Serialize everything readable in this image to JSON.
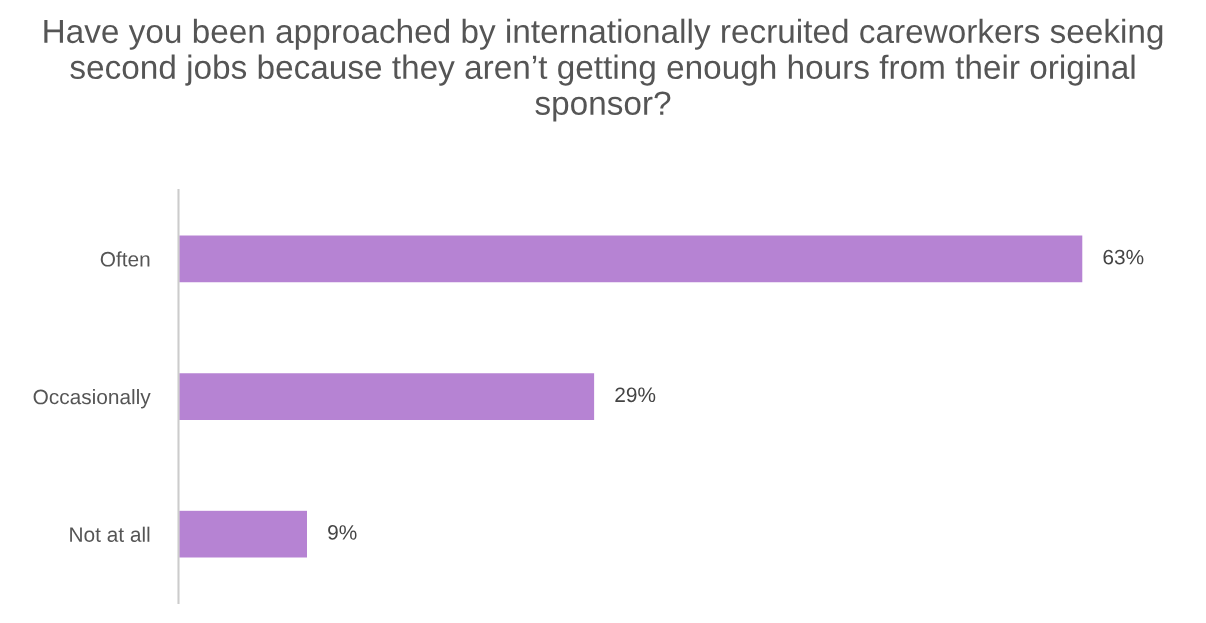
{
  "chart_data": {
    "type": "bar",
    "orientation": "horizontal",
    "title": "Have you been approached by internationally recruited careworkers seeking second jobs because they aren’t getting enough hours from their original sponsor?",
    "categories": [
      "Often",
      "Occasionally",
      "Not at all"
    ],
    "values": [
      63,
      29,
      9
    ],
    "value_labels": [
      "63%",
      "29%",
      "9%"
    ],
    "color": "#b683d3",
    "grid": false,
    "legend": false,
    "tick_labels": "y"
  }
}
